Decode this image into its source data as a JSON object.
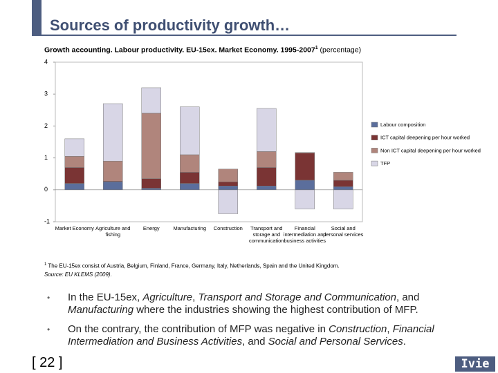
{
  "slide_title": "Sources of productivity growth…",
  "chart_data": {
    "type": "stacked-bar",
    "title": "Growth accounting. Labour productivity. EU-15ex. Market Economy. 1995-2007",
    "title_note": "1",
    "subtitle": "(percentage)",
    "categories": [
      "Market Economy",
      "Agriculture and fishing",
      "Energy",
      "Manufacturing",
      "Construction",
      "Transport and storage and communication",
      "Financial intermediation and business activities",
      "Social and personal services"
    ],
    "series": [
      {
        "name": "Labour composition",
        "color": "#5b6e9c",
        "values": [
          0.2,
          0.25,
          0.05,
          0.2,
          0.12,
          0.12,
          0.3,
          0.1
        ]
      },
      {
        "name": "ICT capital deepening per hour worked",
        "color": "#7a3434",
        "values": [
          0.5,
          0.02,
          0.3,
          0.35,
          0.13,
          0.58,
          0.85,
          0.2
        ]
      },
      {
        "name": "Non ICT capital deepening per hour worked",
        "color": "#b0857c",
        "values": [
          0.35,
          0.63,
          2.05,
          0.55,
          0.4,
          0.5,
          0.02,
          0.25
        ]
      },
      {
        "name": "TFP",
        "color": "#d8d6e6",
        "values": [
          0.55,
          1.8,
          0.8,
          1.5,
          -0.75,
          1.35,
          -0.6,
          -0.6
        ]
      }
    ],
    "ylim": [
      -1,
      4
    ],
    "yticks": [
      -1,
      0,
      1,
      2,
      3,
      4
    ]
  },
  "footnote": "The EU-15ex consist of Austria, Belgium, Finland, France, Germany, Italy, Netherlands, Spain and the United Kingdom.",
  "footnote_mark": "1",
  "source": "Source: EU KLEMS (2009).",
  "bullets": [
    [
      "In the EU-15ex, ",
      "Agriculture",
      ", ",
      "Transport and Storage and Communication",
      ", and ",
      "Manufacturing",
      " where the industries showing the highest contribution of MFP."
    ],
    [
      "On the contrary, the contribution of MFP was negative in ",
      "Construction",
      ", ",
      "Financial Intermediation and Business Activities",
      ", and ",
      "Social and Personal Services",
      "."
    ]
  ],
  "page_number": "[ 22 ]",
  "logo": "Ivie"
}
